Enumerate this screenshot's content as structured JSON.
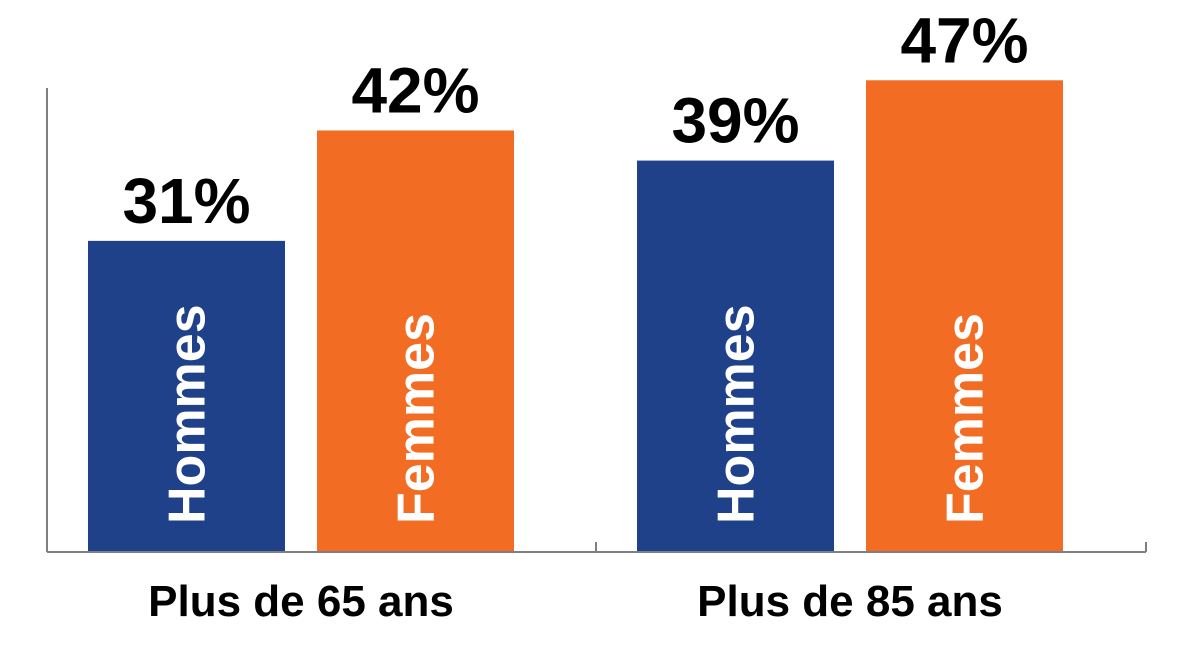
{
  "chart_data": {
    "type": "bar",
    "categories": [
      "Plus de 65 ans",
      "Plus de 85 ans"
    ],
    "series": [
      {
        "name": "Hommes",
        "values": [
          31,
          39
        ],
        "value_labels": [
          "31%",
          "39%"
        ],
        "color": "#1f418a"
      },
      {
        "name": "Femmes",
        "values": [
          42,
          47
        ],
        "value_labels": [
          "42%",
          "47%"
        ],
        "color": "#f26c24"
      }
    ],
    "ylim": [
      0,
      55
    ],
    "grid": false,
    "legend": "in-bar labels"
  }
}
